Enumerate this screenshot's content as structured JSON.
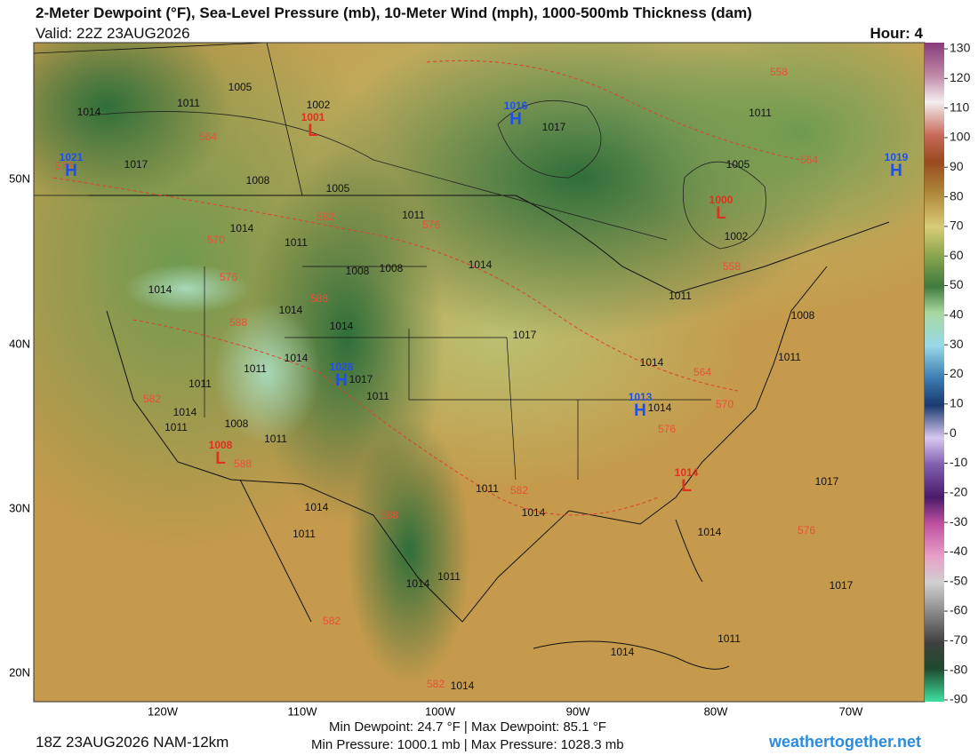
{
  "header": {
    "title": "2-Meter Dewpoint (°F), Sea-Level Pressure (mb), 10-Meter Wind (mph), 1000-500mb Thickness (dam)",
    "valid": "Valid: 22Z 23AUG2026",
    "hour": "Hour: 4"
  },
  "map": {
    "lat_labels": [
      "50N",
      "40N",
      "30N",
      "20N"
    ],
    "lon_labels": [
      "120W",
      "110W",
      "100W",
      "90W",
      "80W",
      "70W"
    ],
    "isobar_labels": [
      "1005",
      "1011",
      "1014",
      "1002",
      "1017",
      "1008",
      "1005",
      "1011",
      "1014",
      "1011",
      "1008",
      "1008",
      "1014",
      "1014",
      "1014",
      "1014",
      "1017",
      "1011",
      "1011",
      "1014",
      "1017",
      "1011",
      "1014",
      "1011",
      "1008",
      "1011",
      "1011",
      "1014",
      "1011",
      "1014",
      "1014",
      "1011",
      "1014",
      "1017",
      "1017",
      "1014",
      "1014",
      "1011",
      "1017",
      "1011",
      "1005",
      "1002",
      "1011",
      "1008",
      "1011",
      "1014",
      "1014"
    ],
    "thickness_labels": [
      "564",
      "582",
      "576",
      "570",
      "576",
      "588",
      "588",
      "582",
      "588",
      "582",
      "588",
      "582",
      "582",
      "564",
      "570",
      "576",
      "576",
      "564",
      "558",
      "558",
      "576"
    ],
    "centers": [
      {
        "letter": "H",
        "value": "1016"
      },
      {
        "letter": "H",
        "value": "1019"
      },
      {
        "letter": "H",
        "value": "1021"
      },
      {
        "letter": "L",
        "value": "1001"
      },
      {
        "letter": "H",
        "value": "1028"
      },
      {
        "letter": "L",
        "value": "1000"
      },
      {
        "letter": "H",
        "value": "1013"
      },
      {
        "letter": "L",
        "value": "1008"
      },
      {
        "letter": "L",
        "value": "1014"
      }
    ]
  },
  "colorbar": {
    "lim": [
      -90,
      130
    ],
    "ticks": [
      130,
      120,
      110,
      100,
      90,
      80,
      70,
      60,
      50,
      40,
      30,
      20,
      10,
      0,
      -10,
      -20,
      -30,
      -40,
      -50,
      -60,
      -70,
      -80,
      -90
    ]
  },
  "footer": {
    "run": "18Z 23AUG2026 NAM-12km",
    "dewpoint": "Min Dewpoint:  24.7 °F | Max Dewpoint:  85.1 °F",
    "pressure": "Min Pressure: 1000.1 mb | Max Pressure: 1028.3 mb",
    "site": "weathertogether.net"
  }
}
